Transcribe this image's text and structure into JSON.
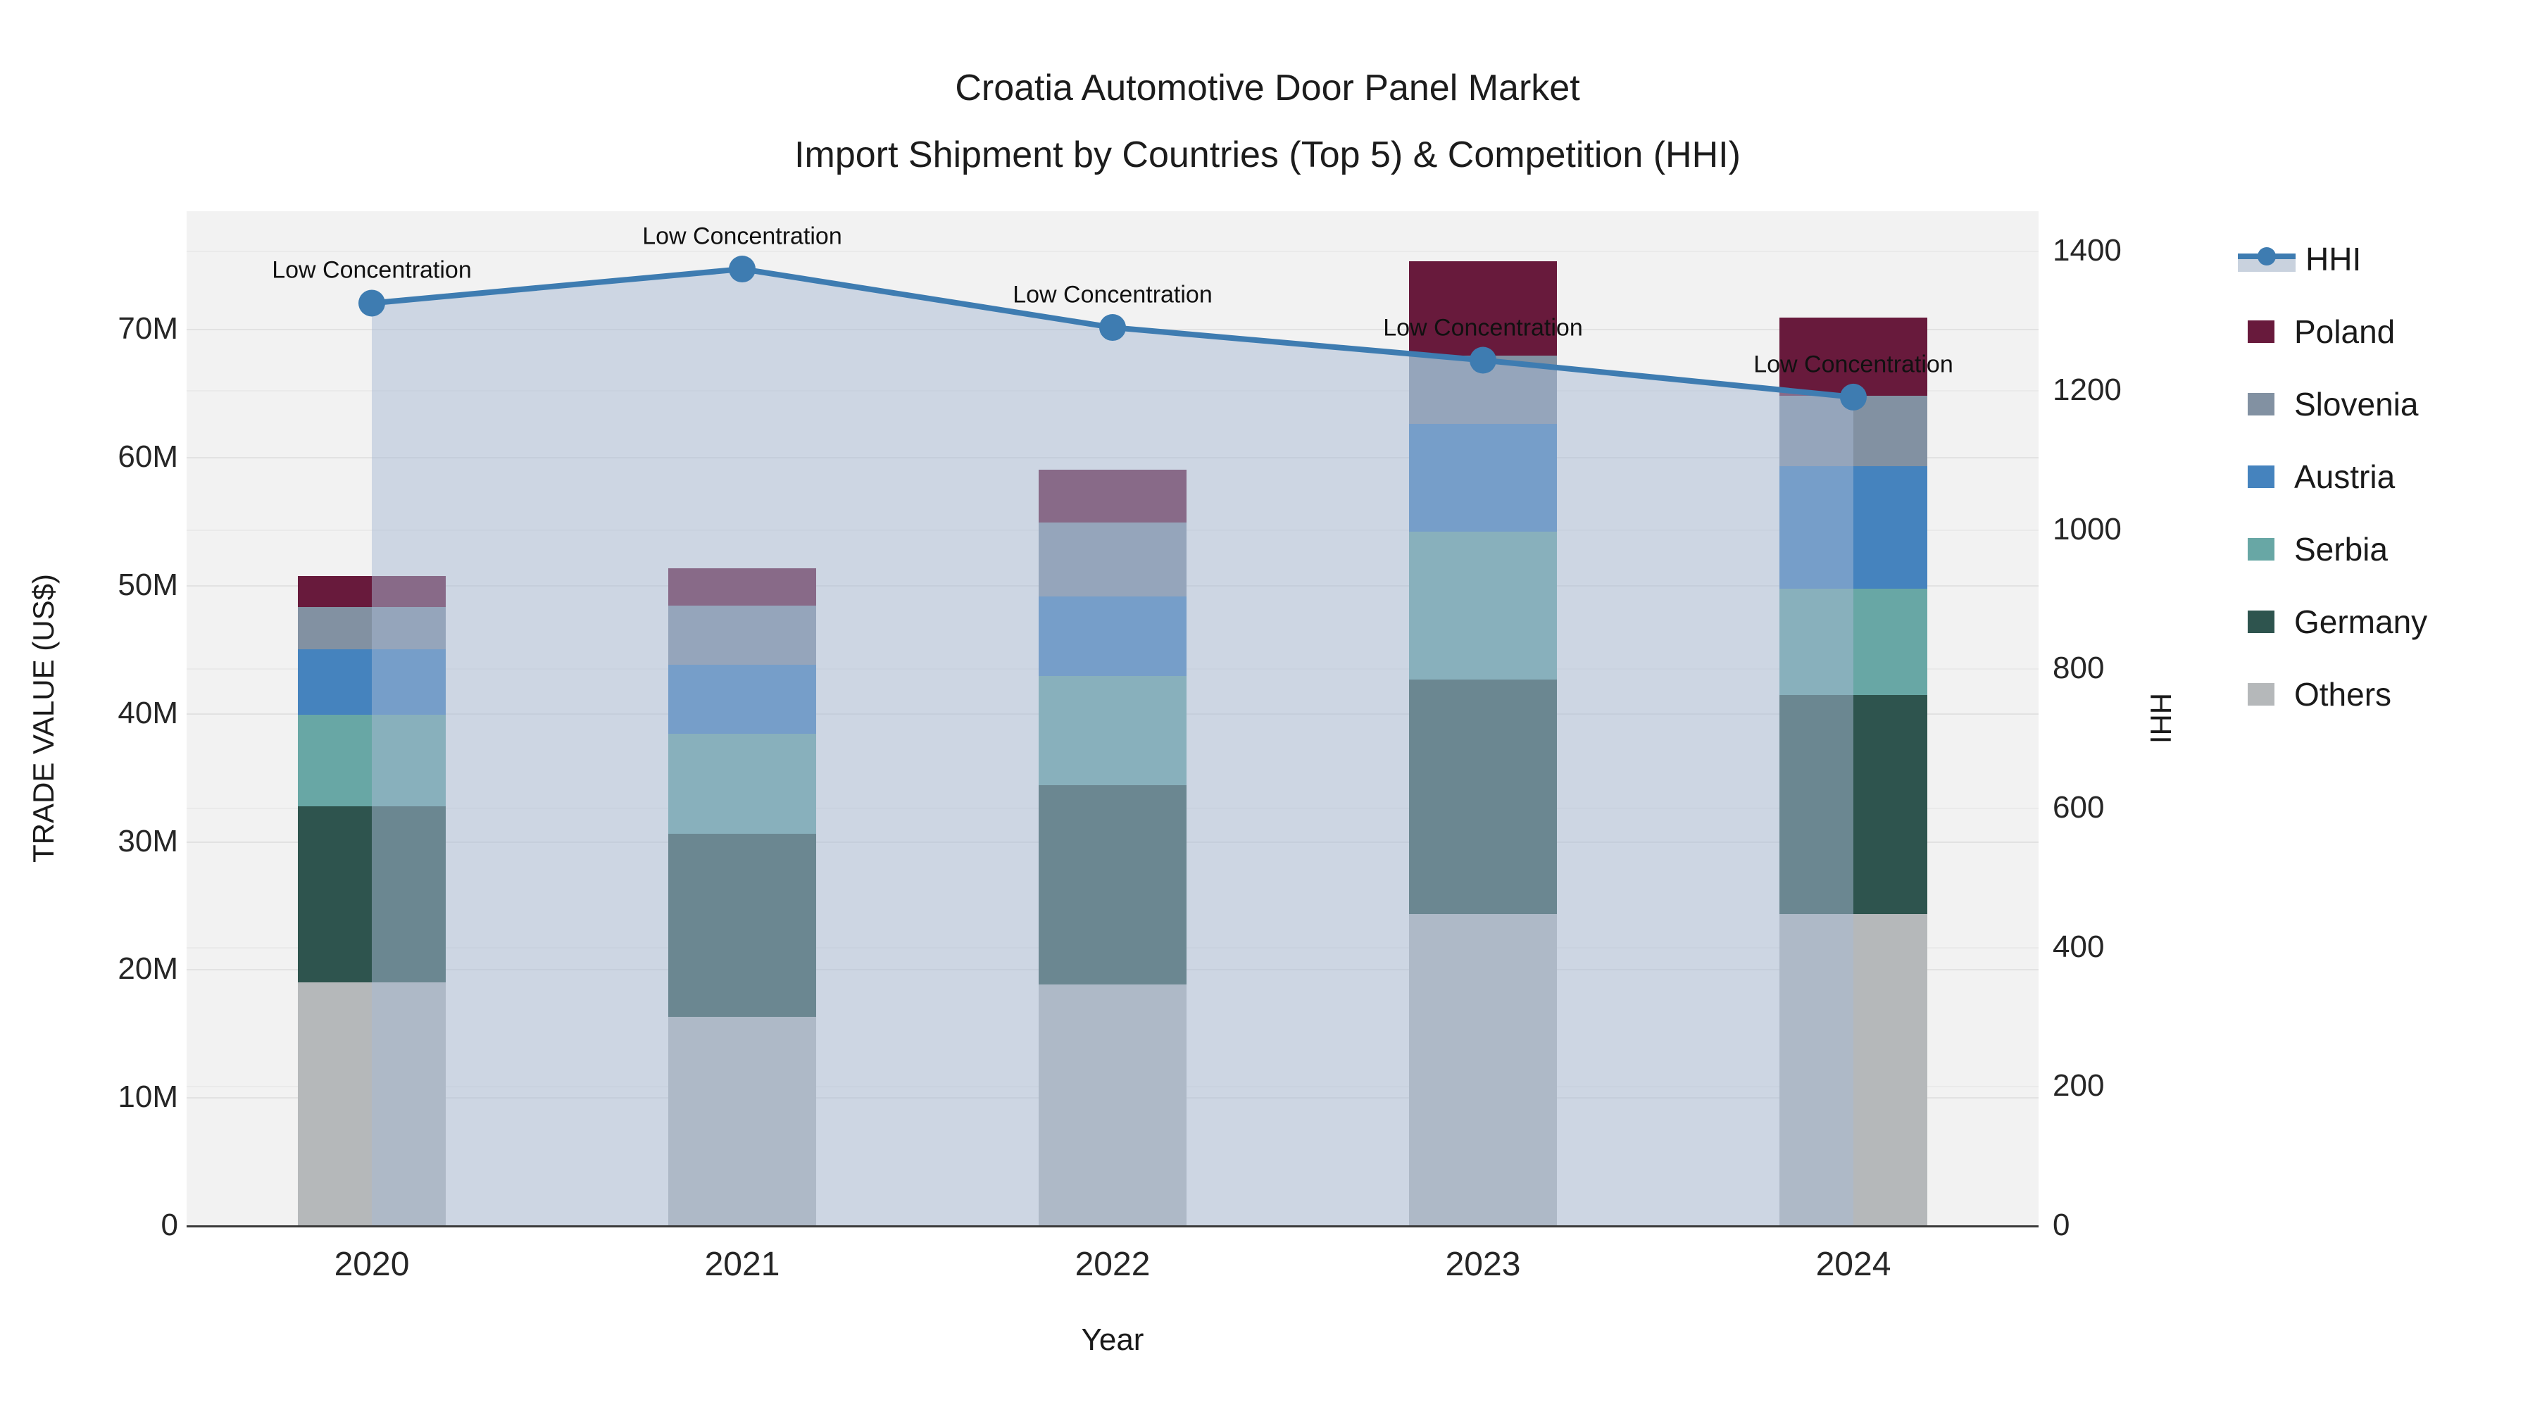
{
  "title": {
    "line1": "Croatia Automotive Door Panel Market",
    "line2": "Import Shipment by Countries (Top 5) & Competition (HHI)"
  },
  "axes": {
    "x": {
      "title": "Year",
      "categories": [
        "2020",
        "2021",
        "2022",
        "2023",
        "2024"
      ]
    },
    "y_left": {
      "title": "TRADE VALUE (US$)",
      "ticks": [
        "0",
        "10M",
        "20M",
        "30M",
        "40M",
        "50M",
        "60M",
        "70M"
      ]
    },
    "y_right": {
      "title": "HHI",
      "ticks": [
        "0",
        "200",
        "400",
        "600",
        "800",
        "1000",
        "1200",
        "1400"
      ]
    }
  },
  "legend": {
    "items": [
      {
        "label": "HHI",
        "kind": "line",
        "color": "#3e7cb1",
        "band_color": "#c9d2de"
      },
      {
        "label": "Poland",
        "kind": "bar",
        "color": "#681a3c"
      },
      {
        "label": "Slovenia",
        "kind": "bar",
        "color": "#8291a2"
      },
      {
        "label": "Austria",
        "kind": "bar",
        "color": "#4583be"
      },
      {
        "label": "Serbia",
        "kind": "bar",
        "color": "#68a7a5"
      },
      {
        "label": "Germany",
        "kind": "bar",
        "color": "#2e544e"
      },
      {
        "label": "Others",
        "kind": "bar",
        "color": "#b5b8ba"
      }
    ]
  },
  "annotation_text": "Low Concentration",
  "chart_data": {
    "type": "combo-stacked-bar-line",
    "categories": [
      "2020",
      "2021",
      "2022",
      "2023",
      "2024"
    ],
    "bar_unit": "US$ millions",
    "bar_series": [
      {
        "name": "Others",
        "color": "#b5b8ba",
        "values": [
          19.0,
          16.3,
          18.8,
          24.3,
          24.3
        ]
      },
      {
        "name": "Germany",
        "color": "#2e544e",
        "values": [
          13.7,
          14.3,
          15.6,
          18.3,
          17.1
        ]
      },
      {
        "name": "Serbia",
        "color": "#68a7a5",
        "values": [
          7.2,
          7.8,
          8.5,
          11.6,
          8.3
        ]
      },
      {
        "name": "Austria",
        "color": "#4583be",
        "values": [
          5.1,
          5.4,
          6.2,
          8.4,
          9.6
        ]
      },
      {
        "name": "Slovenia",
        "color": "#8291a2",
        "values": [
          3.3,
          4.6,
          5.8,
          5.3,
          5.5
        ]
      },
      {
        "name": "Poland",
        "color": "#681a3c",
        "values": [
          2.4,
          2.9,
          4.1,
          7.4,
          6.1
        ]
      }
    ],
    "bar_totals": [
      50.7,
      51.3,
      59.0,
      75.3,
      70.9
    ],
    "line_series": {
      "name": "HHI",
      "color": "#3e7cb1",
      "fill_color": "rgba(168,186,211,0.5)",
      "values": [
        1325,
        1374,
        1290,
        1243,
        1190
      ],
      "annotations": [
        "Low Concentration",
        "Low Concentration",
        "Low Concentration",
        "Low Concentration",
        "Low Concentration"
      ]
    },
    "xlabel": "Year",
    "ylabel": "TRADE VALUE (US$)",
    "y2label": "HHI",
    "ylim": [
      0,
      79.2
    ],
    "y2lim": [
      0,
      1457
    ],
    "grid": true,
    "legend_position": "right"
  }
}
